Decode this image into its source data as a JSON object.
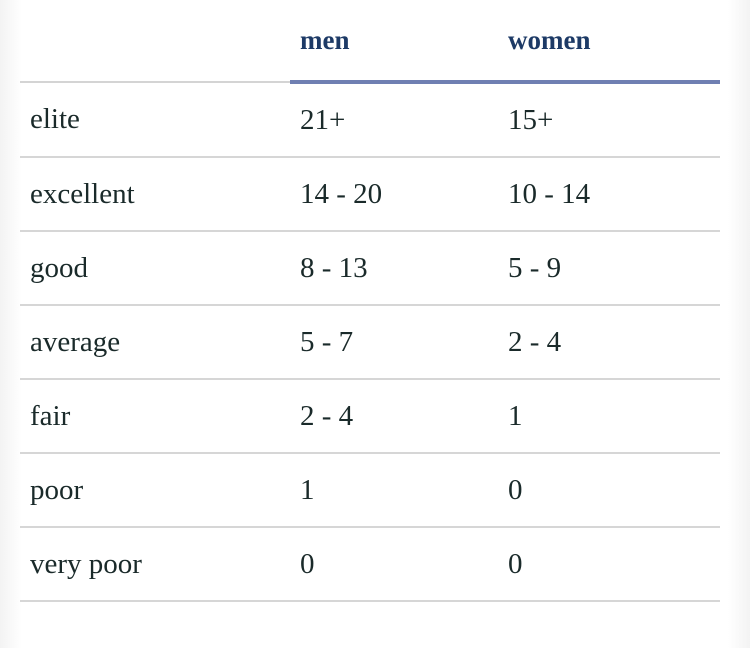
{
  "table": {
    "headers": [
      "",
      "men",
      "women"
    ],
    "rows": [
      {
        "label": "elite",
        "men": "21+",
        "women": "15+"
      },
      {
        "label": "excellent",
        "men": "14 - 20",
        "women": "10 - 14"
      },
      {
        "label": "good",
        "men": "8 - 13",
        "women": "5 - 9"
      },
      {
        "label": "average",
        "men": "5 - 7",
        "women": "2 - 4"
      },
      {
        "label": "fair",
        "men": "2 - 4",
        "women": "1"
      },
      {
        "label": "poor",
        "men": "1",
        "women": "0"
      },
      {
        "label": "very poor",
        "men": "0",
        "women": "0"
      }
    ]
  },
  "colors": {
    "header_text": "#1d3a66",
    "header_underline": "#6f7fb2",
    "row_divider": "#d6d6d6",
    "body_text": "#1a2a2a"
  }
}
